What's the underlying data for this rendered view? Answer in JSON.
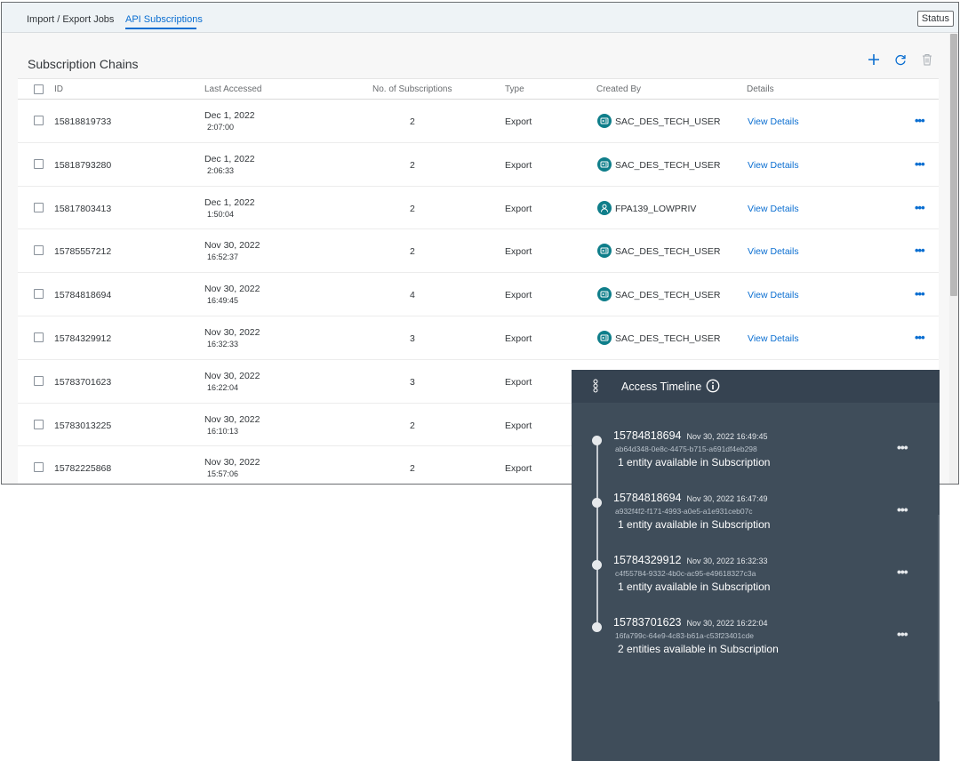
{
  "tabs": [
    {
      "label": "Import / Export Jobs",
      "active": false
    },
    {
      "label": "API Subscriptions",
      "active": true
    }
  ],
  "status_label": "Status",
  "section_title": "Subscription Chains",
  "toolbar_icons": [
    "add-icon",
    "refresh-icon",
    "delete-icon"
  ],
  "columns": [
    "ID",
    "Last Accessed",
    "No. of Subscriptions",
    "Type",
    "Created By",
    "Details"
  ],
  "rows": [
    {
      "id": "15818819733",
      "date": "Dec 1, 2022",
      "time": "2:07:00",
      "subs": "2",
      "type": "Export",
      "creator": "SAC_DES_TECH_USER",
      "creator_icon": "technical-user-icon",
      "details": "View Details"
    },
    {
      "id": "15818793280",
      "date": "Dec 1, 2022",
      "time": "2:06:33",
      "subs": "2",
      "type": "Export",
      "creator": "SAC_DES_TECH_USER",
      "creator_icon": "technical-user-icon",
      "details": "View Details"
    },
    {
      "id": "15817803413",
      "date": "Dec 1, 2022",
      "time": "1:50:04",
      "subs": "2",
      "type": "Export",
      "creator": "FPA139_LOWPRIV",
      "creator_icon": "person-icon",
      "details": "View Details"
    },
    {
      "id": "15785557212",
      "date": "Nov 30, 2022",
      "time": "16:52:37",
      "subs": "2",
      "type": "Export",
      "creator": "SAC_DES_TECH_USER",
      "creator_icon": "technical-user-icon",
      "details": "View Details"
    },
    {
      "id": "15784818694",
      "date": "Nov 30, 2022",
      "time": "16:49:45",
      "subs": "4",
      "type": "Export",
      "creator": "SAC_DES_TECH_USER",
      "creator_icon": "technical-user-icon",
      "details": "View Details"
    },
    {
      "id": "15784329912",
      "date": "Nov 30, 2022",
      "time": "16:32:33",
      "subs": "3",
      "type": "Export",
      "creator": "SAC_DES_TECH_USER",
      "creator_icon": "technical-user-icon",
      "details": "View Details"
    },
    {
      "id": "15783701623",
      "date": "Nov 30, 2022",
      "time": "16:22:04",
      "subs": "3",
      "type": "Export",
      "creator": "",
      "creator_icon": "",
      "details": ""
    },
    {
      "id": "15783013225",
      "date": "Nov 30, 2022",
      "time": "16:10:13",
      "subs": "2",
      "type": "Export",
      "creator": "",
      "creator_icon": "",
      "details": ""
    },
    {
      "id": "15782225868",
      "date": "Nov 30, 2022",
      "time": "15:57:06",
      "subs": "2",
      "type": "Export",
      "creator": "",
      "creator_icon": "",
      "details": ""
    }
  ],
  "timeline": {
    "title": "Access Timeline",
    "items": [
      {
        "id": "15784818694",
        "ts": "Nov 30, 2022 16:49:45",
        "hash": "ab64d348-0e8c-4475-b715-a691df4eb298",
        "desc": "1 entity available in Subscription"
      },
      {
        "id": "15784818694",
        "ts": "Nov 30, 2022 16:47:49",
        "hash": "a932f4f2-f171-4993-a0e5-a1e931ceb07c",
        "desc": "1 entity available in Subscription"
      },
      {
        "id": "15784329912",
        "ts": "Nov 30, 2022 16:32:33",
        "hash": "c4f55784-9332-4b0c-ac95-e49618327c3a",
        "desc": "1 entity available in Subscription"
      },
      {
        "id": "15783701623",
        "ts": "Nov 30, 2022 16:22:04",
        "hash": "16fa799c-64e9-4c83-b61a-c53f23401cde",
        "desc": "2 entities available in Subscription"
      }
    ]
  }
}
